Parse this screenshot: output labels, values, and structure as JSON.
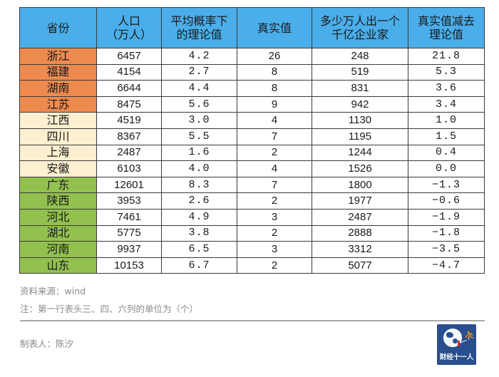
{
  "table": {
    "headers": [
      "省份",
      "人口\n（万人）",
      "平均概率下\n的理论值",
      "真实值",
      "多少万人出一个\n千亿企业家",
      "真实值减去\n理论值"
    ],
    "header_lines": [
      [
        "省份"
      ],
      [
        "人口",
        "（万人）"
      ],
      [
        "平均概率下",
        "的理论值"
      ],
      [
        "真实值"
      ],
      [
        "多少万人出一个",
        "千亿企业家"
      ],
      [
        "真实值减去",
        "理论值"
      ]
    ],
    "rows": [
      {
        "province": "浙江",
        "population": "6457",
        "theoretical": "4.2",
        "actual": "26",
        "per_entrepreneur": "248",
        "difference": "21.8",
        "tier": "top"
      },
      {
        "province": "福建",
        "population": "4154",
        "theoretical": "2.7",
        "actual": "8",
        "per_entrepreneur": "519",
        "difference": "5.3",
        "tier": "top"
      },
      {
        "province": "湖南",
        "population": "6644",
        "theoretical": "4.4",
        "actual": "8",
        "per_entrepreneur": "831",
        "difference": "3.6",
        "tier": "top"
      },
      {
        "province": "江苏",
        "population": "8475",
        "theoretical": "5.6",
        "actual": "9",
        "per_entrepreneur": "942",
        "difference": "3.4",
        "tier": "top"
      },
      {
        "province": "江西",
        "population": "4519",
        "theoretical": "3.0",
        "actual": "4",
        "per_entrepreneur": "1130",
        "difference": "1.0",
        "tier": "mid"
      },
      {
        "province": "四川",
        "population": "8367",
        "theoretical": "5.5",
        "actual": "7",
        "per_entrepreneur": "1195",
        "difference": "1.5",
        "tier": "mid"
      },
      {
        "province": "上海",
        "population": "2487",
        "theoretical": "1.6",
        "actual": "2",
        "per_entrepreneur": "1244",
        "difference": "0.4",
        "tier": "mid"
      },
      {
        "province": "安徽",
        "population": "6103",
        "theoretical": "4.0",
        "actual": "4",
        "per_entrepreneur": "1526",
        "difference": "0.0",
        "tier": "mid"
      },
      {
        "province": "广东",
        "population": "12601",
        "theoretical": "8.3",
        "actual": "7",
        "per_entrepreneur": "1800",
        "difference": "−1.3",
        "tier": "low"
      },
      {
        "province": "陕西",
        "population": "3953",
        "theoretical": "2.6",
        "actual": "2",
        "per_entrepreneur": "1977",
        "difference": "−0.6",
        "tier": "low"
      },
      {
        "province": "河北",
        "population": "7461",
        "theoretical": "4.9",
        "actual": "3",
        "per_entrepreneur": "2487",
        "difference": "−1.9",
        "tier": "low"
      },
      {
        "province": "湖北",
        "population": "5775",
        "theoretical": "3.8",
        "actual": "2",
        "per_entrepreneur": "2888",
        "difference": "−1.8",
        "tier": "low"
      },
      {
        "province": "河南",
        "population": "9937",
        "theoretical": "6.5",
        "actual": "3",
        "per_entrepreneur": "3312",
        "difference": "−3.5",
        "tier": "low"
      },
      {
        "province": "山东",
        "population": "10153",
        "theoretical": "6.7",
        "actual": "2",
        "per_entrepreneur": "5077",
        "difference": "−4.7",
        "tier": "low"
      }
    ],
    "colors": {
      "header": "#4aaeea",
      "tier_top": "#ef8a4f",
      "tier_mid": "#fdefcf",
      "tier_low": "#92c14e"
    }
  },
  "notes": {
    "source": "资料来源：wind",
    "footnote": "注：第一行表头三、四、六列的单位为（个）",
    "author": "制表人：陈汐"
  },
  "logo": {
    "label": "财经十一人",
    "background": "#2a4f8e",
    "icon": "globe-runner-icon"
  }
}
